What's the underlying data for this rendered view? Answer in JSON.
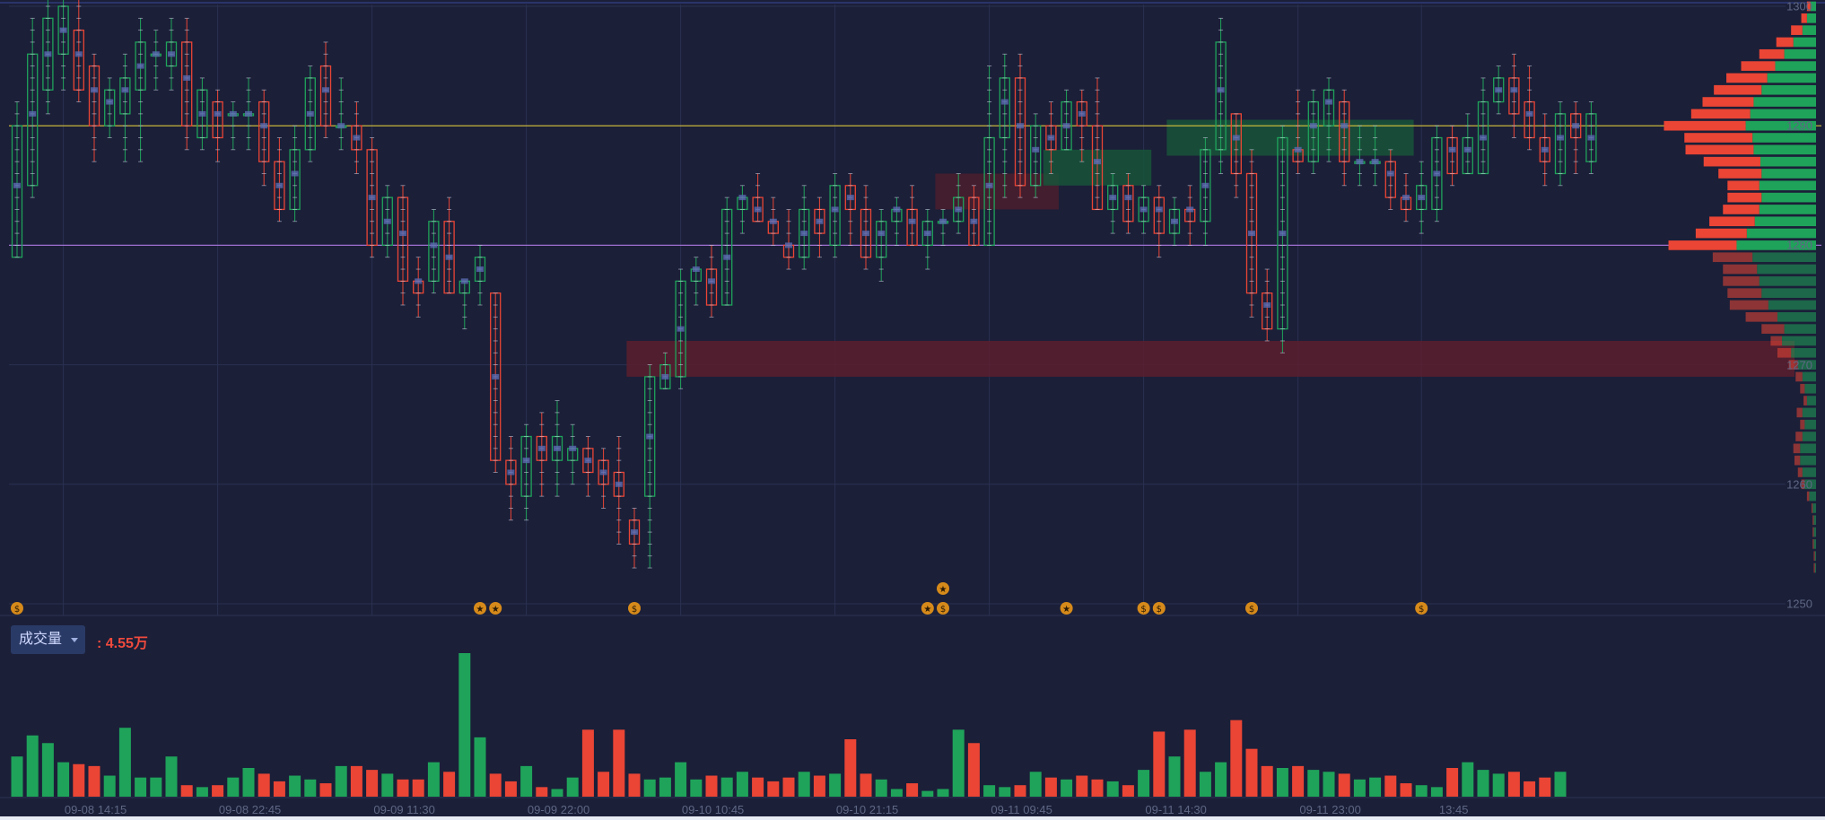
{
  "chart_data": {
    "type": "footprint-candlestick",
    "title": "",
    "price_axis": {
      "min": 1250,
      "max": 1300,
      "ticks": [
        "1300",
        "1290",
        "1280",
        "1270",
        "1260",
        "1250"
      ]
    },
    "time_axis": {
      "labels": [
        "09-08 14:15",
        "09-08 22:45",
        "09-09 11:30",
        "09-09 22:00",
        "09-10 10:45",
        "09-10 21:15",
        "09-11 09:45",
        "09-11 14:30",
        "09-11 23:00",
        "13:45"
      ],
      "label_bar_index": [
        5,
        15,
        25,
        35,
        45,
        55,
        65,
        75,
        85,
        93
      ]
    },
    "reference_lines": [
      {
        "price": 1290,
        "color": "#d8c23a"
      },
      {
        "price": 1280,
        "color": "#a06fd0"
      }
    ],
    "zones": [
      {
        "from_bar": 40,
        "to_bar": 116,
        "low": 1269,
        "high": 1272,
        "color": "#5a1e2e"
      },
      {
        "from_bar": 60,
        "to_bar": 67,
        "low": 1283,
        "high": 1286,
        "color": "#4a1e2e"
      },
      {
        "from_bar": 67,
        "to_bar": 73,
        "low": 1285,
        "high": 1288,
        "color": "#17553a"
      },
      {
        "from_bar": 75,
        "to_bar": 90,
        "low": 1287.5,
        "high": 1290.5,
        "color": "#17553a"
      }
    ],
    "candles": [
      {
        "o": 1279,
        "c": 1290,
        "h": 1292,
        "l": 1279
      },
      {
        "o": 1285,
        "c": 1296,
        "h": 1299,
        "l": 1284
      },
      {
        "o": 1293,
        "c": 1299,
        "h": 1301,
        "l": 1291
      },
      {
        "o": 1296,
        "c": 1300,
        "h": 1301,
        "l": 1293
      },
      {
        "o": 1298,
        "c": 1293,
        "h": 1301,
        "l": 1292
      },
      {
        "o": 1295,
        "c": 1290,
        "h": 1296,
        "l": 1287
      },
      {
        "o": 1290,
        "c": 1293,
        "h": 1294,
        "l": 1289
      },
      {
        "o": 1291,
        "c": 1294,
        "h": 1296,
        "l": 1287
      },
      {
        "o": 1293,
        "c": 1297,
        "h": 1299,
        "l": 1287
      },
      {
        "o": 1296,
        "c": 1296,
        "h": 1298,
        "l": 1293
      },
      {
        "o": 1295,
        "c": 1297,
        "h": 1299,
        "l": 1293
      },
      {
        "o": 1297,
        "c": 1290,
        "h": 1299,
        "l": 1288
      },
      {
        "o": 1289,
        "c": 1293,
        "h": 1294,
        "l": 1288
      },
      {
        "o": 1292,
        "c": 1289,
        "h": 1293,
        "l": 1287
      },
      {
        "o": 1291,
        "c": 1291,
        "h": 1292,
        "l": 1288
      },
      {
        "o": 1291,
        "c": 1291,
        "h": 1294,
        "l": 1288
      },
      {
        "o": 1292,
        "c": 1287,
        "h": 1293,
        "l": 1285
      },
      {
        "o": 1287,
        "c": 1283,
        "h": 1289,
        "l": 1282
      },
      {
        "o": 1283,
        "c": 1288,
        "h": 1290,
        "l": 1282
      },
      {
        "o": 1288,
        "c": 1294,
        "h": 1295,
        "l": 1287
      },
      {
        "o": 1295,
        "c": 1290,
        "h": 1297,
        "l": 1289
      },
      {
        "o": 1290,
        "c": 1290,
        "h": 1294,
        "l": 1288
      },
      {
        "o": 1290,
        "c": 1288,
        "h": 1292,
        "l": 1286
      },
      {
        "o": 1288,
        "c": 1280,
        "h": 1289,
        "l": 1279
      },
      {
        "o": 1280,
        "c": 1284,
        "h": 1285,
        "l": 1279
      },
      {
        "o": 1284,
        "c": 1277,
        "h": 1285,
        "l": 1275
      },
      {
        "o": 1277,
        "c": 1276,
        "h": 1279,
        "l": 1274
      },
      {
        "o": 1277,
        "c": 1282,
        "h": 1283,
        "l": 1276
      },
      {
        "o": 1282,
        "c": 1276,
        "h": 1284,
        "l": 1276
      },
      {
        "o": 1276,
        "c": 1277,
        "h": 1277,
        "l": 1273
      },
      {
        "o": 1277,
        "c": 1279,
        "h": 1280,
        "l": 1275
      },
      {
        "o": 1276,
        "c": 1262,
        "h": 1276,
        "l": 1261
      },
      {
        "o": 1262,
        "c": 1260,
        "h": 1264,
        "l": 1257
      },
      {
        "o": 1259,
        "c": 1264,
        "h": 1265,
        "l": 1257
      },
      {
        "o": 1264,
        "c": 1262,
        "h": 1266,
        "l": 1259
      },
      {
        "o": 1262,
        "c": 1264,
        "h": 1267,
        "l": 1259
      },
      {
        "o": 1262,
        "c": 1263,
        "h": 1265,
        "l": 1260
      },
      {
        "o": 1263,
        "c": 1261,
        "h": 1264,
        "l": 1259
      },
      {
        "o": 1262,
        "c": 1260,
        "h": 1263,
        "l": 1258
      },
      {
        "o": 1261,
        "c": 1259,
        "h": 1264,
        "l": 1255
      },
      {
        "o": 1257,
        "c": 1255,
        "h": 1258,
        "l": 1253
      },
      {
        "o": 1259,
        "c": 1269,
        "h": 1270,
        "l": 1253
      },
      {
        "o": 1268,
        "c": 1270,
        "h": 1271,
        "l": 1268
      },
      {
        "o": 1269,
        "c": 1277,
        "h": 1278,
        "l": 1268
      },
      {
        "o": 1277,
        "c": 1278,
        "h": 1279,
        "l": 1275
      },
      {
        "o": 1278,
        "c": 1275,
        "h": 1280,
        "l": 1274
      },
      {
        "o": 1275,
        "c": 1283,
        "h": 1284,
        "l": 1275
      },
      {
        "o": 1283,
        "c": 1284,
        "h": 1285,
        "l": 1281
      },
      {
        "o": 1284,
        "c": 1282,
        "h": 1286,
        "l": 1282
      },
      {
        "o": 1282,
        "c": 1281,
        "h": 1284,
        "l": 1280
      },
      {
        "o": 1280,
        "c": 1279,
        "h": 1283,
        "l": 1278
      },
      {
        "o": 1279,
        "c": 1283,
        "h": 1285,
        "l": 1278
      },
      {
        "o": 1283,
        "c": 1281,
        "h": 1284,
        "l": 1279
      },
      {
        "o": 1280,
        "c": 1285,
        "h": 1286,
        "l": 1279
      },
      {
        "o": 1285,
        "c": 1283,
        "h": 1286,
        "l": 1280
      },
      {
        "o": 1283,
        "c": 1279,
        "h": 1285,
        "l": 1278
      },
      {
        "o": 1279,
        "c": 1282,
        "h": 1283,
        "l": 1277
      },
      {
        "o": 1282,
        "c": 1283,
        "h": 1284,
        "l": 1280
      },
      {
        "o": 1283,
        "c": 1280,
        "h": 1285,
        "l": 1280
      },
      {
        "o": 1280,
        "c": 1282,
        "h": 1283,
        "l": 1278
      },
      {
        "o": 1282,
        "c": 1282,
        "h": 1283,
        "l": 1280
      },
      {
        "o": 1282,
        "c": 1284,
        "h": 1286,
        "l": 1281
      },
      {
        "o": 1284,
        "c": 1280,
        "h": 1285,
        "l": 1280
      },
      {
        "o": 1280,
        "c": 1289,
        "h": 1295,
        "l": 1280
      },
      {
        "o": 1289,
        "c": 1294,
        "h": 1296,
        "l": 1284
      },
      {
        "o": 1294,
        "c": 1285,
        "h": 1296,
        "l": 1284
      },
      {
        "o": 1285,
        "c": 1290,
        "h": 1291,
        "l": 1284
      },
      {
        "o": 1290,
        "c": 1288,
        "h": 1292,
        "l": 1286
      },
      {
        "o": 1288,
        "c": 1292,
        "h": 1293,
        "l": 1288
      },
      {
        "o": 1292,
        "c": 1290,
        "h": 1293,
        "l": 1287
      },
      {
        "o": 1290,
        "c": 1283,
        "h": 1294,
        "l": 1283
      },
      {
        "o": 1283,
        "c": 1285,
        "h": 1286,
        "l": 1281
      },
      {
        "o": 1285,
        "c": 1282,
        "h": 1286,
        "l": 1281
      },
      {
        "o": 1282,
        "c": 1284,
        "h": 1285,
        "l": 1281
      },
      {
        "o": 1284,
        "c": 1281,
        "h": 1285,
        "l": 1279
      },
      {
        "o": 1281,
        "c": 1283,
        "h": 1284,
        "l": 1280
      },
      {
        "o": 1283,
        "c": 1282,
        "h": 1285,
        "l": 1280
      },
      {
        "o": 1282,
        "c": 1288,
        "h": 1289,
        "l": 1280
      },
      {
        "o": 1288,
        "c": 1297,
        "h": 1299,
        "l": 1286
      },
      {
        "o": 1291,
        "c": 1286,
        "h": 1291,
        "l": 1284
      },
      {
        "o": 1286,
        "c": 1276,
        "h": 1288,
        "l": 1274
      },
      {
        "o": 1276,
        "c": 1273,
        "h": 1278,
        "l": 1272
      },
      {
        "o": 1273,
        "c": 1289,
        "h": 1290,
        "l": 1271
      },
      {
        "o": 1288,
        "c": 1287,
        "h": 1293,
        "l": 1286
      },
      {
        "o": 1287,
        "c": 1292,
        "h": 1293,
        "l": 1286
      },
      {
        "o": 1290,
        "c": 1293,
        "h": 1294,
        "l": 1287
      },
      {
        "o": 1292,
        "c": 1287,
        "h": 1293,
        "l": 1285
      },
      {
        "o": 1287,
        "c": 1287,
        "h": 1290,
        "l": 1285
      },
      {
        "o": 1287,
        "c": 1287,
        "h": 1290,
        "l": 1285
      },
      {
        "o": 1287,
        "c": 1284,
        "h": 1288,
        "l": 1283
      },
      {
        "o": 1284,
        "c": 1283,
        "h": 1286,
        "l": 1282
      },
      {
        "o": 1283,
        "c": 1285,
        "h": 1287,
        "l": 1281
      },
      {
        "o": 1283,
        "c": 1289,
        "h": 1290,
        "l": 1282
      },
      {
        "o": 1289,
        "c": 1286,
        "h": 1290,
        "l": 1285
      },
      {
        "o": 1286,
        "c": 1289,
        "h": 1291,
        "l": 1286
      },
      {
        "o": 1286,
        "c": 1292,
        "h": 1294,
        "l": 1286
      },
      {
        "o": 1292,
        "c": 1294,
        "h": 1295,
        "l": 1291
      },
      {
        "o": 1294,
        "c": 1291,
        "h": 1296,
        "l": 1289
      },
      {
        "o": 1292,
        "c": 1289,
        "h": 1295,
        "l": 1288
      },
      {
        "o": 1289,
        "c": 1287,
        "h": 1291,
        "l": 1285
      },
      {
        "o": 1286,
        "c": 1291,
        "h": 1292,
        "l": 1285
      },
      {
        "o": 1291,
        "c": 1289,
        "h": 1292,
        "l": 1286
      },
      {
        "o": 1287,
        "c": 1291,
        "h": 1292,
        "l": 1286
      }
    ],
    "volume": {
      "label": "成交量",
      "readout": ": 4.55万",
      "values": [
        21,
        32,
        28,
        18,
        17,
        16,
        11,
        36,
        10,
        10,
        21,
        6,
        5,
        6,
        10,
        15,
        12,
        8,
        11,
        9,
        7,
        16,
        16,
        14,
        12,
        9,
        9,
        18,
        13,
        75,
        31,
        12,
        8,
        16,
        5,
        4,
        10,
        35,
        13,
        35,
        12,
        9,
        10,
        18,
        9,
        11,
        10,
        13,
        10,
        8,
        10,
        13,
        11,
        12,
        30,
        12,
        9,
        4,
        7,
        3,
        4,
        35,
        28,
        6,
        5,
        6,
        13,
        10,
        9,
        11,
        9,
        8,
        6,
        14,
        34,
        21,
        35,
        13,
        18,
        40,
        25,
        16,
        15,
        16,
        14,
        13,
        12,
        9,
        10,
        11,
        7,
        6,
        5,
        15,
        18,
        14,
        12,
        13,
        8,
        10,
        13
      ]
    },
    "volume_profile": {
      "levels": [
        1300,
        1299,
        1298,
        1297,
        1296,
        1295,
        1294,
        1293,
        1292,
        1291,
        1290,
        1289,
        1288,
        1287,
        1286,
        1285,
        1284,
        1283,
        1282,
        1281,
        1280,
        1279,
        1278,
        1277,
        1276,
        1275,
        1274,
        1273,
        1272,
        1271,
        1270,
        1269,
        1268,
        1267,
        1266,
        1265,
        1264,
        1263,
        1262,
        1261,
        1260,
        1259,
        1258,
        1257,
        1256,
        1255,
        1254,
        1253
      ],
      "buy": [
        0.05,
        0.08,
        0.12,
        0.2,
        0.28,
        0.36,
        0.43,
        0.48,
        0.55,
        0.58,
        0.62,
        0.56,
        0.55,
        0.49,
        0.48,
        0.5,
        0.48,
        0.5,
        0.54,
        0.61,
        0.7,
        0.56,
        0.52,
        0.5,
        0.48,
        0.42,
        0.34,
        0.28,
        0.3,
        0.22,
        0.16,
        0.12,
        0.1,
        0.08,
        0.12,
        0.1,
        0.12,
        0.14,
        0.14,
        0.12,
        0.1,
        0.06,
        0.03,
        0.02,
        0.02,
        0.02,
        0.01,
        0.01
      ],
      "sell": [
        0.03,
        0.05,
        0.1,
        0.15,
        0.22,
        0.3,
        0.36,
        0.42,
        0.45,
        0.52,
        0.72,
        0.6,
        0.6,
        0.5,
        0.38,
        0.28,
        0.3,
        0.32,
        0.4,
        0.45,
        0.6,
        0.35,
        0.3,
        0.32,
        0.3,
        0.34,
        0.28,
        0.2,
        0.1,
        0.12,
        0.08,
        0.06,
        0.04,
        0.03,
        0.05,
        0.04,
        0.06,
        0.06,
        0.05,
        0.04,
        0.03,
        0.02,
        0.01,
        0.01,
        0.01,
        0.01,
        0.01,
        0.01
      ]
    },
    "event_markers": [
      {
        "bar": 0,
        "type": "news"
      },
      {
        "bar": 30,
        "type": "star"
      },
      {
        "bar": 31,
        "type": "star"
      },
      {
        "bar": 40,
        "type": "news"
      },
      {
        "bar": 59,
        "type": "star"
      },
      {
        "bar": 60,
        "type": "news"
      },
      {
        "bar": 60,
        "type": "star",
        "row": 1
      },
      {
        "bar": 68,
        "type": "star"
      },
      {
        "bar": 73,
        "type": "news"
      },
      {
        "bar": 74,
        "type": "news"
      },
      {
        "bar": 80,
        "type": "news"
      },
      {
        "bar": 91,
        "type": "news"
      }
    ],
    "colors": {
      "background": "#1b1f38",
      "up": "#1fa35a",
      "down": "#ea4535",
      "grid": "#2a3050",
      "marker": "#d68a1a"
    },
    "grid": true
  }
}
